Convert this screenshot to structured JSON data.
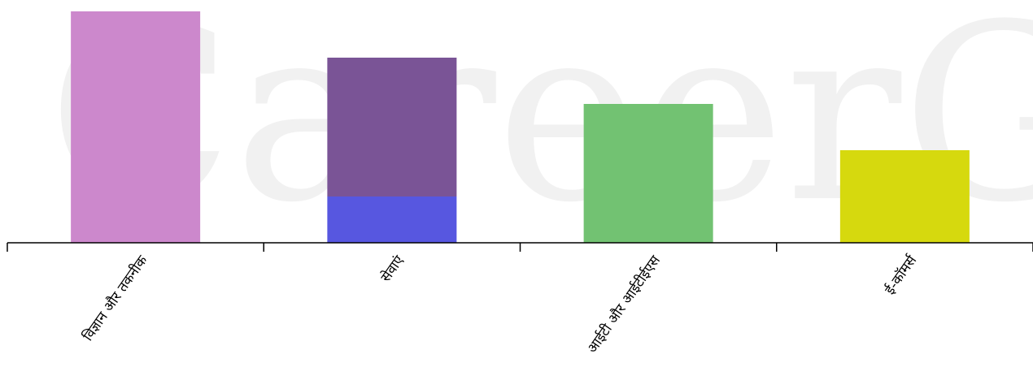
{
  "watermark": "CareerGraph",
  "chart_data": {
    "type": "bar",
    "stacked": true,
    "title": "",
    "xlabel": "",
    "ylabel": "",
    "categories": [
      "विज्ञान और तकनीक",
      "सेवाएं",
      "आईटी और आईटीईएस",
      "ई-कॉमर्स"
    ],
    "series": [
      {
        "color": "#cc88cc",
        "values": [
          5,
          0,
          0,
          0
        ]
      },
      {
        "color": "#5757e0",
        "values": [
          0,
          1,
          0,
          0
        ]
      },
      {
        "color": "#7a5496",
        "values": [
          0,
          3,
          0,
          0
        ]
      },
      {
        "color": "#72c272",
        "values": [
          0,
          0,
          3,
          0
        ]
      },
      {
        "color": "#d6d90e",
        "values": [
          0,
          0,
          0,
          2
        ]
      }
    ],
    "ylim": [
      0,
      5
    ],
    "grid": false,
    "legend": "none",
    "y_axis_visible": false
  }
}
